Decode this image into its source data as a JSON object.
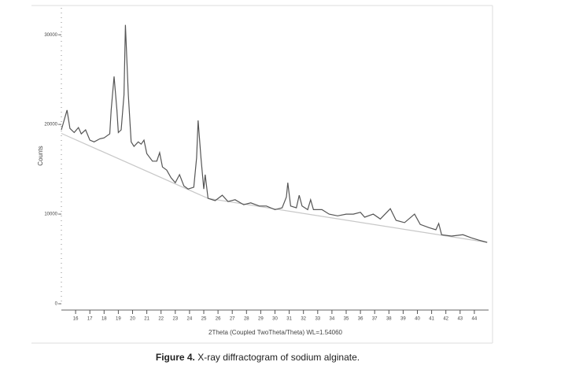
{
  "chart_data": {
    "type": "line",
    "y_label": "Counts",
    "x_label": "2Theta (Coupled TwoTheta/Theta) WL=1.54060",
    "xlim": [
      15,
      45
    ],
    "ylim": [
      0,
      33000
    ],
    "xticks": [
      16,
      17,
      18,
      19,
      20,
      21,
      22,
      23,
      24,
      25,
      26,
      27,
      28,
      29,
      30,
      31,
      32,
      33,
      34,
      35,
      36,
      37,
      38,
      39,
      40,
      41,
      42,
      43,
      44
    ],
    "yticks": [
      0,
      10000,
      20000,
      30000
    ],
    "series": [
      {
        "color": "#555555",
        "x": [
          15.0,
          15.4,
          15.6,
          15.9,
          16.2,
          16.4,
          16.7,
          17.0,
          17.3,
          17.7,
          18.0,
          18.4,
          18.5,
          18.7,
          18.9,
          19.0,
          19.2,
          19.4,
          19.5,
          19.7,
          19.9,
          20.1,
          20.4,
          20.6,
          20.8,
          21.0,
          21.4,
          21.7,
          21.9,
          22.1,
          22.4,
          22.7,
          23.0,
          23.3,
          23.6,
          23.9,
          24.3,
          24.5,
          24.6,
          24.8,
          25.0,
          25.1,
          25.3,
          25.8,
          26.3,
          26.7,
          27.2,
          27.8,
          28.3,
          28.9,
          29.4,
          30.0,
          30.5,
          30.8,
          30.9,
          31.1,
          31.5,
          31.7,
          31.9,
          32.3,
          32.5,
          32.7,
          33.3,
          33.8,
          34.4,
          35.0,
          35.5,
          36.0,
          36.3,
          36.9,
          37.4,
          38.1,
          38.5,
          39.1,
          39.8,
          40.2,
          40.8,
          41.3,
          41.5,
          41.7,
          42.4,
          43.2,
          43.8,
          44.3,
          44.9
        ],
        "values": [
          19400,
          21600,
          19550,
          19100,
          19650,
          18950,
          19400,
          18250,
          18050,
          18400,
          18500,
          18950,
          21600,
          25350,
          21600,
          19100,
          19400,
          23300,
          31100,
          23300,
          18050,
          17550,
          18050,
          17800,
          18250,
          16750,
          15900,
          15900,
          16850,
          15250,
          14900,
          14050,
          13500,
          14400,
          13150,
          12800,
          13000,
          16300,
          20450,
          16300,
          12800,
          14400,
          11750,
          11500,
          12100,
          11400,
          11600,
          11050,
          11250,
          10900,
          10900,
          10500,
          10700,
          11900,
          13500,
          10900,
          10700,
          12100,
          10900,
          10500,
          11600,
          10500,
          10500,
          10000,
          9800,
          10000,
          10000,
          10200,
          9650,
          10000,
          9450,
          10600,
          9300,
          9050,
          10000,
          8850,
          8500,
          8250,
          8950,
          7700,
          7550,
          7700,
          7350,
          7100,
          6850
        ]
      },
      {
        "color": "#c8c8c8",
        "x": [
          15.0,
          25.3,
          44.9
        ],
        "values": [
          19000,
          11750,
          6850
        ]
      }
    ]
  },
  "caption": {
    "label": "Figure 4.",
    "text": "X-ray diffractogram of sodium alginate."
  }
}
